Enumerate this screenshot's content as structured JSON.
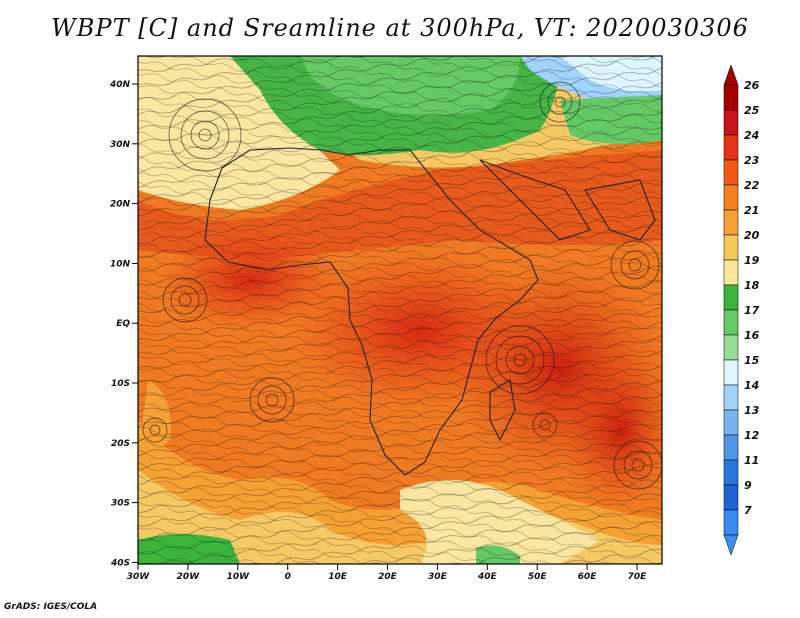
{
  "title": "WBPT [C] and Sreamline at 300hPa, VT: 2020030306",
  "credit": "GrADS: IGES/COLA",
  "map": {
    "lat_ticks": [
      "40N",
      "30N",
      "20N",
      "10N",
      "EQ",
      "10S",
      "20S",
      "30S",
      "40S"
    ],
    "lon_ticks": [
      "30W",
      "20W",
      "10W",
      "0",
      "10E",
      "20E",
      "30E",
      "40E",
      "50E",
      "60E",
      "70E"
    ],
    "extent": {
      "lon_min": -30,
      "lon_max": 75,
      "lat_min": -40,
      "lat_max": 45
    }
  },
  "colorbar": {
    "labels": [
      "26",
      "25",
      "24",
      "23",
      "22",
      "21",
      "20",
      "19",
      "18",
      "17",
      "16",
      "15",
      "14",
      "13",
      "12",
      "11",
      "9",
      "7"
    ],
    "colors": [
      "#a50000",
      "#c8141e",
      "#e63214",
      "#f05a14",
      "#f5821e",
      "#f5a032",
      "#f5c85a",
      "#fae696",
      "#3cb43c",
      "#64c864",
      "#96dc96",
      "#dcf5ff",
      "#a0d2fa",
      "#78b4f0",
      "#5096e6",
      "#2878dc",
      "#1e64d2",
      "#3c8cf0"
    ]
  }
}
